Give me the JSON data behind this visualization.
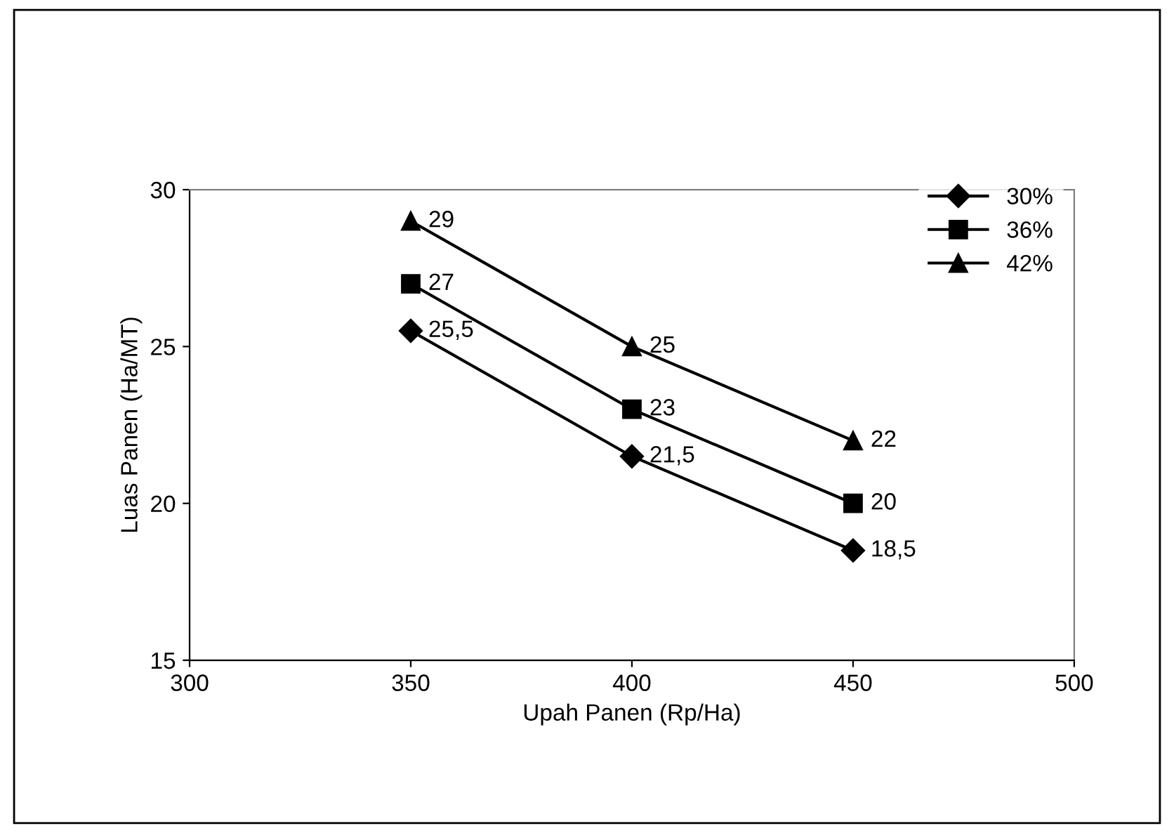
{
  "chart_data": {
    "type": "line",
    "xlabel": "Upah Panen (Rp/Ha)",
    "ylabel": "Luas Panen (Ha/MT)",
    "x": [
      350,
      400,
      450
    ],
    "series": [
      {
        "name": "30%",
        "color": "#000000",
        "marker": "diamond",
        "values": [
          25.5,
          21.5,
          18.5
        ],
        "value_labels": [
          "25,5",
          "21,5",
          "18,5"
        ]
      },
      {
        "name": "36%",
        "color": "#000000",
        "marker": "square",
        "values": [
          27,
          23,
          20
        ],
        "value_labels": [
          "27",
          "23",
          "20"
        ]
      },
      {
        "name": "42%",
        "color": "#000000",
        "marker": "triangle",
        "values": [
          29,
          25,
          22
        ],
        "value_labels": [
          "29",
          "25",
          "22"
        ]
      }
    ],
    "xlim": [
      300,
      500
    ],
    "xticks": [
      300,
      350,
      400,
      450,
      500
    ],
    "ylim": [
      15,
      30
    ],
    "yticks": [
      15,
      20,
      25,
      30
    ],
    "grid": false,
    "legend": "top right",
    "line_style": "solid"
  }
}
